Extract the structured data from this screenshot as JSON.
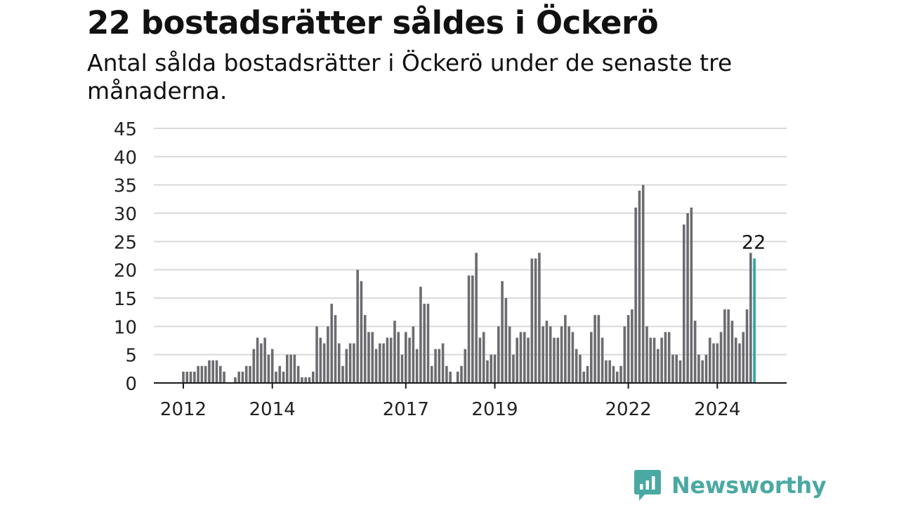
{
  "title": "22 bostadsrätter såldes i Öckerö",
  "subtitle": "Antal sålda bostadsrätter i Öckerö under de senaste tre månaderna.",
  "brand": {
    "name": "Newsworthy",
    "icon": "newsworthy-logo-icon",
    "color": "#4aa9a3"
  },
  "chart_data": {
    "type": "bar",
    "title": "22 bostadsrätter såldes i Öckerö",
    "xlabel": "",
    "ylabel": "",
    "ylim": [
      0,
      45
    ],
    "yticks": [
      "0",
      "5",
      "10",
      "15",
      "20",
      "25",
      "30",
      "35",
      "40",
      "45"
    ],
    "xticks": [
      {
        "label": "2012",
        "index": 0
      },
      {
        "label": "2014",
        "index": 24
      },
      {
        "label": "2017",
        "index": 60
      },
      {
        "label": "2019",
        "index": 84
      },
      {
        "label": "2022",
        "index": 120
      },
      {
        "label": "2024",
        "index": 144
      }
    ],
    "grid": true,
    "bar_color": "#6c6b70",
    "highlight_color": "#2ba6a1",
    "highlight_index": 154,
    "highlight_label": "22",
    "values": [
      2,
      2,
      2,
      2,
      3,
      3,
      3,
      4,
      4,
      4,
      3,
      2,
      0,
      0,
      1,
      2,
      2,
      3,
      3,
      6,
      8,
      7,
      8,
      5,
      6,
      2,
      3,
      2,
      5,
      5,
      5,
      3,
      1,
      1,
      1,
      2,
      10,
      8,
      7,
      10,
      14,
      12,
      7,
      3,
      6,
      7,
      7,
      20,
      18,
      12,
      9,
      9,
      6,
      7,
      7,
      8,
      8,
      11,
      9,
      5,
      9,
      8,
      10,
      6,
      17,
      14,
      14,
      3,
      6,
      6,
      7,
      3,
      2,
      0,
      2,
      3,
      6,
      19,
      19,
      23,
      8,
      9,
      4,
      5,
      5,
      10,
      18,
      15,
      10,
      5,
      8,
      9,
      9,
      8,
      22,
      22,
      23,
      10,
      11,
      10,
      8,
      8,
      10,
      12,
      10,
      9,
      6,
      5,
      2,
      3,
      9,
      12,
      12,
      8,
      4,
      4,
      3,
      2,
      3,
      10,
      12,
      13,
      31,
      34,
      35,
      10,
      8,
      8,
      6,
      8,
      9,
      9,
      5,
      5,
      4,
      28,
      30,
      31,
      11,
      5,
      4,
      5,
      8,
      7,
      7,
      9,
      13,
      13,
      11,
      8,
      7,
      9,
      13,
      23,
      22
    ]
  }
}
